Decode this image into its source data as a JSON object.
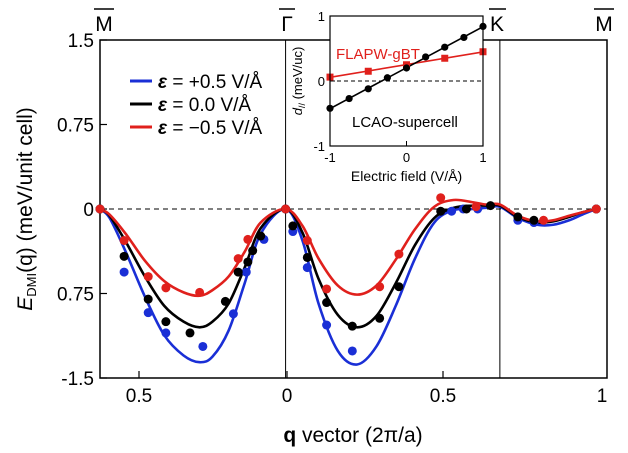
{
  "chart_data": [
    {
      "type": "line",
      "ylabel_main": "E",
      "ylabel_sub": "DMI",
      "ylabel_rest": "(q) (meV/unit cell)",
      "xlabel_bold": "q",
      "xlabel_rest": " vector (2π/a)",
      "ylim": [
        -1.5,
        1.5
      ],
      "y_tick_labels": [
        "1.5",
        "0.75",
        "0",
        "0.75",
        "-1.5"
      ],
      "y_tick_values": [
        1.5,
        0.75,
        0,
        -0.75,
        -1.5
      ],
      "x_tick_labels": [
        "0.5",
        "0",
        "0.5",
        "1"
      ],
      "sym_points": [
        "M",
        "Γ",
        "K",
        "M"
      ],
      "legend": [
        {
          "symbol": "ε",
          "text": " = +0.5 V/Å",
          "color": "#1a2fd6"
        },
        {
          "symbol": "ε",
          "text": " = 0.0 V/Å",
          "color": "#000000"
        },
        {
          "symbol": "ε",
          "text": " = −0.5 V/Å",
          "color": "#e0201c"
        }
      ],
      "x_segments": [
        {
          "from": "M",
          "to": "Γ",
          "length": 0.5774
        },
        {
          "from": "Γ",
          "to": "K",
          "length": 0.6667
        },
        {
          "from": "K",
          "to": "M",
          "length": 0.3333
        }
      ],
      "series": [
        {
          "name": "ε = +0.5 V/Å",
          "color": "#1a2fd6",
          "curve_x": [
            0,
            0.03,
            0.08,
            0.14,
            0.2,
            0.26,
            0.31,
            0.35,
            0.4,
            0.45,
            0.5,
            0.5774,
            0.63,
            0.68,
            0.74,
            0.8,
            0.86,
            0.92,
            0.98,
            1.04,
            1.1,
            1.16,
            1.2,
            1.244,
            1.3,
            1.36,
            1.41,
            1.46,
            1.5,
            1.544
          ],
          "curve_y": [
            0,
            -0.08,
            -0.38,
            -0.78,
            -1.12,
            -1.3,
            -1.36,
            -1.31,
            -1.08,
            -0.66,
            -0.22,
            0,
            -0.28,
            -0.84,
            -1.26,
            -1.38,
            -1.22,
            -0.86,
            -0.44,
            -0.12,
            -0.01,
            0.0,
            0.01,
            0.02,
            -0.08,
            -0.14,
            -0.14,
            -0.1,
            -0.05,
            0
          ],
          "points": [
            [
              0,
              0
            ],
            [
              0.075,
              -0.56
            ],
            [
              0.15,
              -0.92
            ],
            [
              0.205,
              -1.1
            ],
            [
              0.32,
              -1.22
            ],
            [
              0.415,
              -0.93
            ],
            [
              0.455,
              -0.56
            ],
            [
              0.51,
              -0.27
            ],
            [
              0.5774,
              0
            ],
            [
              0.6,
              -0.2
            ],
            [
              0.645,
              -0.52
            ],
            [
              0.705,
              -1.03
            ],
            [
              0.785,
              -1.26
            ],
            [
              1.094,
              -0.02
            ],
            [
              1.13,
              0.0
            ],
            [
              1.175,
              0.0
            ],
            [
              1.3,
              -0.1
            ],
            [
              1.35,
              -0.12
            ],
            [
              1.544,
              0
            ]
          ]
        },
        {
          "name": "ε = 0.0 V/Å",
          "color": "#000000",
          "curve_x": [
            0,
            0.03,
            0.08,
            0.14,
            0.2,
            0.26,
            0.31,
            0.35,
            0.4,
            0.45,
            0.5,
            0.5774,
            0.63,
            0.68,
            0.74,
            0.8,
            0.86,
            0.92,
            0.98,
            1.04,
            1.1,
            1.16,
            1.2,
            1.244,
            1.3,
            1.36,
            1.41,
            1.46,
            1.5,
            1.544
          ],
          "curve_y": [
            0,
            -0.06,
            -0.29,
            -0.6,
            -0.86,
            -1.0,
            -1.05,
            -1.0,
            -0.84,
            -0.52,
            -0.17,
            0,
            -0.21,
            -0.62,
            -0.94,
            -1.05,
            -0.95,
            -0.66,
            -0.32,
            -0.08,
            0.01,
            0.03,
            0.03,
            0.03,
            -0.07,
            -0.12,
            -0.11,
            -0.07,
            -0.03,
            0
          ],
          "points": [
            [
              0,
              0
            ],
            [
              0.075,
              -0.42
            ],
            [
              0.15,
              -0.8
            ],
            [
              0.205,
              -1.0
            ],
            [
              0.28,
              -1.1
            ],
            [
              0.39,
              -0.82
            ],
            [
              0.43,
              -0.56
            ],
            [
              0.46,
              -0.47
            ],
            [
              0.475,
              -0.37
            ],
            [
              0.5,
              -0.24
            ],
            [
              0.5774,
              0
            ],
            [
              0.6,
              -0.15
            ],
            [
              0.645,
              -0.43
            ],
            [
              0.705,
              -0.83
            ],
            [
              0.785,
              -1.04
            ],
            [
              0.87,
              -0.97
            ],
            [
              0.93,
              -0.69
            ],
            [
              1.06,
              -0.02
            ],
            [
              1.14,
              0.0
            ],
            [
              1.215,
              0.03
            ],
            [
              1.3,
              -0.07
            ],
            [
              1.35,
              -0.1
            ],
            [
              1.544,
              0
            ]
          ]
        },
        {
          "name": "ε = −0.5 V/Å",
          "color": "#e0201c",
          "curve_x": [
            0,
            0.03,
            0.08,
            0.14,
            0.2,
            0.26,
            0.31,
            0.35,
            0.4,
            0.45,
            0.5,
            0.5774,
            0.63,
            0.68,
            0.74,
            0.8,
            0.86,
            0.92,
            0.98,
            1.04,
            1.1,
            1.16,
            1.2,
            1.244,
            1.3,
            1.36,
            1.41,
            1.46,
            1.5,
            1.544
          ],
          "curve_y": [
            0,
            -0.05,
            -0.22,
            -0.46,
            -0.64,
            -0.74,
            -0.77,
            -0.72,
            -0.6,
            -0.38,
            -0.12,
            0,
            -0.15,
            -0.44,
            -0.68,
            -0.76,
            -0.68,
            -0.45,
            -0.18,
            0.02,
            0.08,
            0.06,
            0.04,
            0.04,
            -0.06,
            -0.11,
            -0.1,
            -0.06,
            -0.03,
            0
          ],
          "points": [
            [
              0,
              0
            ],
            [
              0.075,
              -0.28
            ],
            [
              0.15,
              -0.6
            ],
            [
              0.205,
              -0.7
            ],
            [
              0.31,
              -0.74
            ],
            [
              0.43,
              -0.44
            ],
            [
              0.46,
              -0.27
            ],
            [
              0.5774,
              0
            ],
            [
              0.645,
              -0.28
            ],
            [
              0.705,
              -0.71
            ],
            [
              0.87,
              -0.69
            ],
            [
              0.93,
              -0.4
            ],
            [
              1.06,
              0.1
            ],
            [
              1.17,
              0.02
            ],
            [
              1.38,
              -0.1
            ],
            [
              1.544,
              0
            ]
          ]
        }
      ]
    },
    {
      "type": "line",
      "ylabel_main": "d",
      "ylabel_sub": "//",
      "ylabel_rest": " (meV/uc)",
      "xlabel": "Electric field (V/Å)",
      "xlim": [
        -1,
        1
      ],
      "ylim": [
        -1,
        1
      ],
      "x_tick_labels": [
        "-1",
        "0",
        "1"
      ],
      "y_tick_labels": [
        "1",
        "0",
        "-1"
      ],
      "series": [
        {
          "name": "FLAPW-gBT",
          "color": "#e0201c",
          "marker": "square",
          "x": [
            -1,
            -0.5,
            0,
            0.5,
            1
          ],
          "y": [
            0.06,
            0.15,
            0.25,
            0.35,
            0.45
          ]
        },
        {
          "name": "LCAO-supercell",
          "color": "#000000",
          "marker": "circle",
          "x": [
            -1,
            -0.75,
            -0.5,
            -0.25,
            0,
            0.25,
            0.5,
            0.75,
            1
          ],
          "y": [
            -0.42,
            -0.27,
            -0.12,
            0.05,
            0.2,
            0.37,
            0.52,
            0.67,
            0.84
          ]
        }
      ]
    }
  ]
}
